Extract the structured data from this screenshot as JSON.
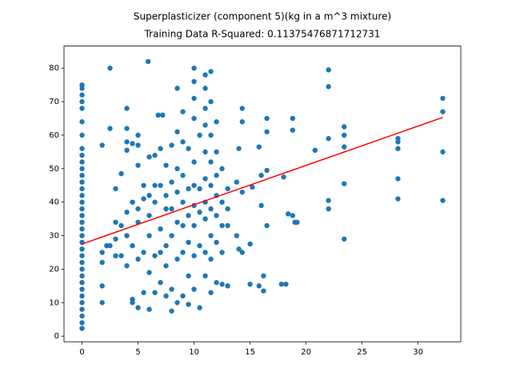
{
  "chart_data": {
    "type": "scatter",
    "title": "Superplasticizer (component 5)(kg in a m^3 mixture)",
    "subtitle": "Training Data R-Squared: 0.11375476871712731",
    "color": "#1f77b4",
    "x": [
      0,
      0,
      0,
      0,
      0,
      0,
      0,
      0,
      0,
      0,
      0,
      0,
      0,
      0,
      0,
      0,
      0,
      0,
      0,
      0,
      0,
      0,
      0,
      0,
      0,
      0,
      0,
      0,
      0,
      0,
      0,
      0,
      0,
      0,
      0,
      1.8,
      1.8,
      1.8,
      1.8,
      1.8,
      2.2,
      2.5,
      2.5,
      2.5,
      3,
      3,
      3,
      3,
      3.5,
      3.5,
      3.5,
      4,
      4,
      4,
      4,
      4,
      4,
      4,
      4.5,
      4.5,
      4.5,
      4.5,
      4.5,
      5,
      5,
      5,
      5,
      5,
      5,
      5,
      5.5,
      5.5,
      5.5,
      5.5,
      5.9,
      6,
      6,
      6,
      6,
      6,
      6,
      6.5,
      6.5,
      6.5,
      6.5,
      6.5,
      6.8,
      7,
      7,
      7,
      7,
      7,
      7.2,
      7.5,
      7.5,
      7.5,
      7.5,
      7.5,
      7.5,
      8,
      8,
      8,
      8,
      8,
      8,
      8.5,
      8.5,
      8.5,
      8.5,
      8.5,
      8.5,
      8.5,
      9,
      9,
      9,
      9,
      9,
      9,
      9,
      9.5,
      9.5,
      9.5,
      9.5,
      9.5,
      9.5,
      10,
      10,
      10,
      10,
      10,
      10,
      10,
      10,
      10,
      10,
      10.5,
      10.5,
      10.5,
      10.5,
      10.5,
      11,
      11,
      11,
      11,
      11,
      11,
      11,
      11,
      11,
      11,
      11.5,
      11.5,
      11.5,
      11.5,
      11.5,
      11.5,
      11.5,
      11.5,
      11.5,
      12,
      12,
      12,
      12,
      12,
      12,
      12,
      12.5,
      12.5,
      12.5,
      12.5,
      12.5,
      13,
      13,
      13,
      13,
      13.8,
      13.8,
      14,
      14,
      14.3,
      14.3,
      14.3,
      14.3,
      15,
      15,
      15.2,
      15.8,
      15.8,
      16,
      16,
      16.2,
      16.2,
      16.5,
      16.5,
      16.5,
      16.5,
      17.8,
      18,
      18.2,
      18.4,
      18.8,
      18.8,
      18.8,
      19,
      19.2,
      20.8,
      22,
      22,
      22,
      22,
      22,
      23.4,
      23.4,
      23.4,
      23.4,
      23.4,
      28.2,
      28.2,
      28.2,
      28.2,
      28.2,
      32.2,
      32.2,
      32.2,
      32.2
    ],
    "values": [
      2.3,
      4,
      6,
      8,
      10,
      12,
      14,
      16,
      18,
      20,
      22,
      24,
      26,
      28,
      30,
      32,
      34,
      36,
      38,
      40,
      42,
      44,
      46,
      48,
      50,
      52,
      54,
      56,
      60,
      64,
      68,
      70,
      72,
      74,
      75,
      57,
      25,
      22,
      15,
      10,
      27,
      80,
      62,
      27,
      44,
      34,
      29,
      24,
      48.5,
      33,
      24,
      68,
      62,
      58,
      55.5,
      37,
      30,
      21,
      57.5,
      40,
      27,
      11,
      10,
      60,
      57,
      51,
      38,
      34,
      23,
      8.5,
      45,
      41,
      25,
      13,
      82,
      53.5,
      42,
      36,
      30,
      19,
      8,
      54,
      45,
      40,
      24,
      13,
      66,
      56,
      45,
      32,
      25,
      16,
      66,
      51,
      42,
      38,
      27,
      21,
      12,
      57,
      46,
      38,
      30,
      14,
      7.5,
      74,
      61,
      50,
      43,
      34,
      23,
      10,
      67,
      58,
      48,
      40,
      33,
      25,
      12,
      56,
      44,
      36,
      28,
      18,
      9.5,
      80,
      76,
      71,
      65,
      52,
      45,
      39,
      33,
      24,
      14,
      60,
      44,
      37,
      27,
      8.5,
      78,
      74,
      68,
      63,
      55,
      47,
      40,
      35,
      25,
      18,
      79,
      70,
      60,
      52,
      45,
      38,
      30,
      23,
      13,
      64,
      55,
      48,
      42,
      36,
      28,
      16,
      50,
      40,
      33,
      25,
      15.5,
      44,
      38,
      33,
      15,
      46,
      30,
      26,
      56,
      68,
      64,
      43,
      25,
      27.5,
      15.5,
      44.5,
      56.5,
      15,
      48,
      39,
      13.5,
      18,
      65,
      61,
      49.5,
      33,
      15.5,
      47.5,
      15.5,
      36.5,
      65,
      61.5,
      36,
      34,
      34,
      55.5,
      79.5,
      74.5,
      59,
      40.5,
      38,
      62.5,
      60,
      56.5,
      45.5,
      29,
      59,
      58,
      56,
      47,
      41,
      71,
      67,
      55,
      40.5
    ],
    "fit_line": {
      "color": "#ff0000",
      "x": [
        0,
        32.2
      ],
      "values": [
        27.5,
        65.3
      ]
    },
    "xlim": [
      -1.61,
      33.81
    ],
    "xticks": [
      0,
      5,
      10,
      15,
      20,
      25,
      30
    ],
    "ylim": [
      -1.68,
      86.6
    ],
    "yticks": [
      0,
      10,
      20,
      30,
      40,
      50,
      60,
      70,
      80
    ]
  }
}
